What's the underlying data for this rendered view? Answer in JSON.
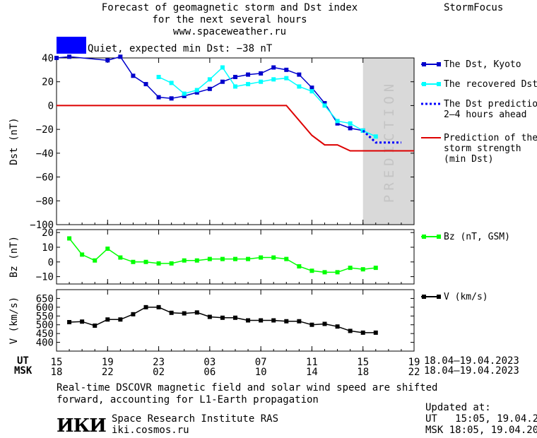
{
  "header": {
    "title_line1": "Forecast of geomagnetic storm and Dst index",
    "title_line2": "for the next several hours",
    "url": "www.spaceweather.ru",
    "brand": "StormFocus",
    "status": "Quiet, expected min Dst: −38 nT",
    "status_color": "#0000ff"
  },
  "legend": {
    "dst_kyoto": "The Dst, Kyoto",
    "dst_recovered": "The recovered Dst",
    "dst_prediction": "The Dst prediction\n2–4 hours ahead",
    "storm_strength": "Prediction of the\nstorm strength\n(min Dst)",
    "bz": "Bz (nT, GSM)",
    "v": "V (km/s)"
  },
  "axes": {
    "ut_label": "UT",
    "msk_label": "MSK",
    "ut_ticks": [
      "15",
      "19",
      "23",
      "03",
      "07",
      "11",
      "15",
      "19"
    ],
    "msk_ticks": [
      "18",
      "22",
      "02",
      "06",
      "10",
      "14",
      "18",
      "22"
    ],
    "ut_range": "18.04–19.04.2023",
    "msk_range": "18.04–19.04.2023",
    "prediction_text": "PREDICTION"
  },
  "footer": {
    "note_line1": "Real-time DSCOVR magnetic field and solar wind speed are shifted",
    "note_line2": "forward, accounting for L1-Earth propagation",
    "logo": "ИКИ",
    "institute": "Space Research Institute RAS",
    "site": "iki.cosmos.ru",
    "updated_label": "Updated at:",
    "updated_ut": "UT   15:05, 19.04.2023",
    "updated_msk": "MSK 18:05, 19.04.2023"
  },
  "chart_data": [
    {
      "type": "line",
      "ylabel": "Dst (nT)",
      "ylim": [
        -100,
        40
      ],
      "yticks": [
        40,
        20,
        0,
        -20,
        -40,
        -60,
        -80,
        -100
      ],
      "xlim": [
        0,
        28
      ],
      "prediction_span": [
        24,
        28
      ],
      "series": [
        {
          "name": "The Dst, Kyoto",
          "color": "#0000cc",
          "marker": "square",
          "x": [
            0,
            1,
            4,
            5,
            6,
            7,
            8,
            9,
            10,
            11,
            12,
            13,
            14,
            15,
            16,
            17,
            18,
            19,
            20,
            21,
            22,
            23,
            24
          ],
          "y": [
            40,
            41,
            38,
            41,
            25,
            18,
            7,
            6,
            8,
            11,
            14,
            20,
            24,
            26,
            27,
            32,
            30,
            26,
            15,
            2,
            -15,
            -19,
            -21
          ]
        },
        {
          "name": "The recovered Dst",
          "color": "#00ffff",
          "marker": "square",
          "x": [
            8,
            9,
            10,
            11,
            12,
            13,
            14,
            15,
            16,
            17,
            18,
            19,
            20,
            21,
            22,
            23,
            24,
            25
          ],
          "y": [
            24,
            19,
            10,
            13,
            22,
            32,
            16,
            18,
            20,
            22,
            23,
            16,
            12,
            0,
            -13,
            -15,
            -21,
            -26
          ]
        },
        {
          "name": "The Dst prediction 2–4 hours ahead",
          "color": "#0000ff",
          "style": "dotted",
          "x": [
            24,
            25,
            26,
            27
          ],
          "y": [
            -21,
            -31,
            -31,
            -31
          ]
        },
        {
          "name": "Prediction of the storm strength (min Dst)",
          "color": "#dd0000",
          "style": "solid",
          "x": [
            0,
            18,
            20,
            21,
            22,
            23,
            28
          ],
          "y": [
            0,
            0,
            -25,
            -33,
            -33,
            -38,
            -38
          ]
        }
      ]
    },
    {
      "type": "line",
      "ylabel": "Bz (nT)",
      "ylim": [
        -15,
        22
      ],
      "yticks": [
        20,
        10,
        0,
        -10
      ],
      "xlim": [
        0,
        28
      ],
      "series": [
        {
          "name": "Bz (nT, GSM)",
          "color": "#00ff00",
          "marker": "square",
          "x": [
            1,
            2,
            3,
            4,
            5,
            6,
            7,
            8,
            9,
            10,
            11,
            12,
            13,
            14,
            15,
            16,
            17,
            18,
            19,
            20,
            21,
            22,
            23,
            24,
            25
          ],
          "y": [
            16,
            5,
            1,
            9,
            3,
            0,
            0,
            -1,
            -1,
            1,
            1,
            2,
            2,
            2,
            2,
            3,
            3,
            2,
            -3,
            -6,
            -7,
            -7,
            -4,
            -5,
            -4
          ]
        }
      ]
    },
    {
      "type": "line",
      "ylabel": "V (km/s)",
      "ylim": [
        350,
        700
      ],
      "yticks": [
        650,
        600,
        550,
        500,
        450,
        400
      ],
      "xlim": [
        0,
        28
      ],
      "series": [
        {
          "name": "V (km/s)",
          "color": "#000000",
          "marker": "square",
          "x": [
            1,
            2,
            3,
            4,
            5,
            6,
            7,
            8,
            9,
            10,
            11,
            12,
            13,
            14,
            15,
            16,
            17,
            18,
            19,
            20,
            21,
            22,
            23,
            24,
            25
          ],
          "y": [
            515,
            518,
            495,
            530,
            530,
            560,
            600,
            600,
            568,
            565,
            570,
            545,
            540,
            540,
            525,
            525,
            525,
            520,
            520,
            500,
            505,
            490,
            465,
            455,
            455
          ]
        }
      ]
    }
  ]
}
